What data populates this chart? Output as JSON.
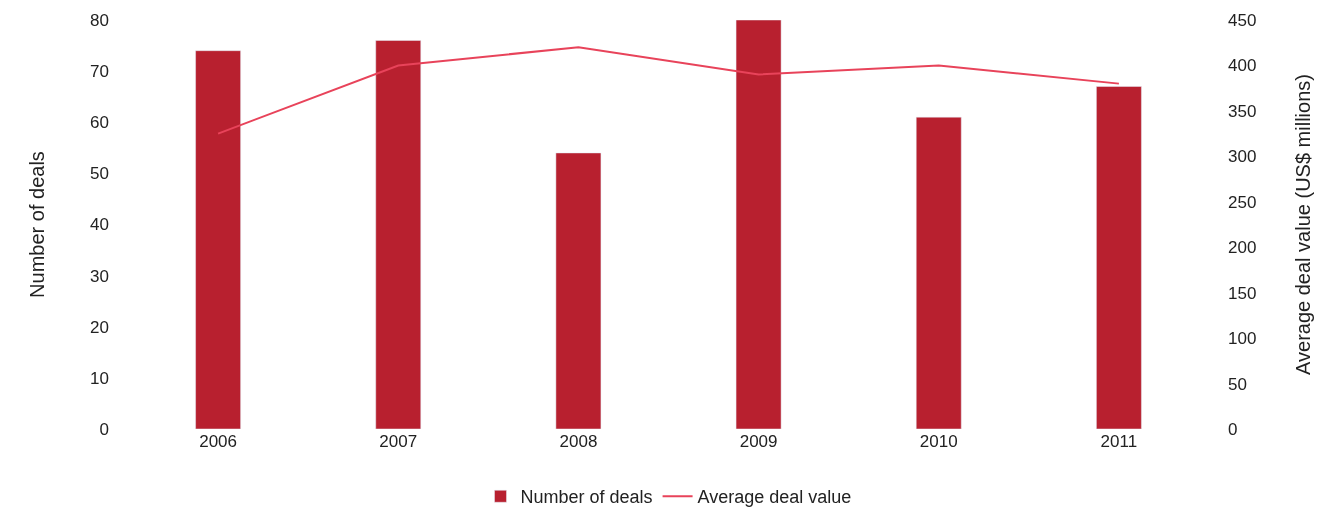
{
  "chart_data": {
    "type": "bar",
    "categories": [
      "2006",
      "2007",
      "2008",
      "2009",
      "2010",
      "2011"
    ],
    "series": [
      {
        "name": "Number of deals",
        "color": "#b8202f",
        "values": [
          74,
          76,
          54,
          80,
          61,
          67
        ]
      },
      {
        "name": "Average deal value",
        "type": "line",
        "axis": "y2",
        "color": "#e8435a",
        "values": [
          325,
          400,
          420,
          390,
          400,
          380
        ]
      }
    ],
    "ylabel": "Number of deals",
    "y2label": "Average deal value (US$ millions)",
    "ylim": [
      0,
      80
    ],
    "yticks": [
      0,
      10,
      20,
      30,
      40,
      50,
      60,
      70,
      80
    ],
    "y2lim": [
      0,
      450
    ],
    "y2ticks": [
      0,
      50,
      100,
      150,
      200,
      250,
      300,
      350,
      400,
      450
    ],
    "legend": "bottom",
    "marker": "none",
    "line_style": "solid"
  }
}
